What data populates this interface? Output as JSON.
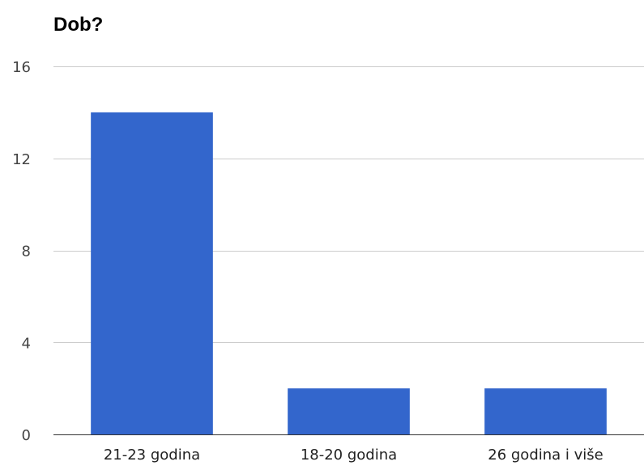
{
  "chart_data": {
    "type": "bar",
    "title": "Dob?",
    "xlabel": "",
    "ylabel": "",
    "categories": [
      "21-23 godina",
      "18-20 godina",
      "26 godina i više"
    ],
    "values": [
      14,
      2,
      2
    ],
    "ylim": [
      0,
      16
    ],
    "yticks": [
      0,
      4,
      8,
      12,
      16
    ],
    "grid": true,
    "legend": "none",
    "bar_color": "#3366cc"
  }
}
